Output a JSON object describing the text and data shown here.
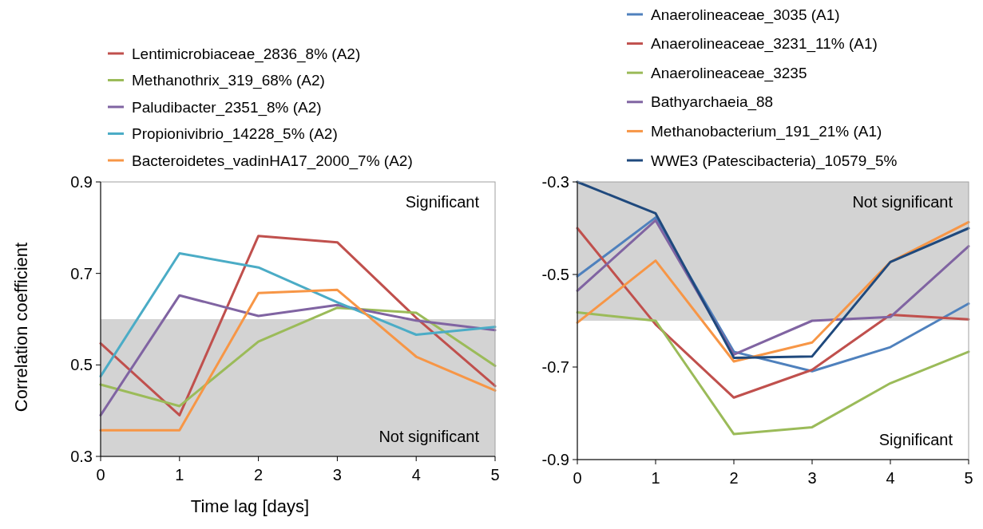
{
  "chart_data": [
    {
      "type": "line",
      "xlabel": "Time lag [days]",
      "ylabel": "Correlation coefficient",
      "x": [
        0,
        1,
        2,
        3,
        4,
        5
      ],
      "xlim": [
        0,
        5
      ],
      "xticks": [
        0,
        1,
        2,
        3,
        4,
        5
      ],
      "ylim": [
        0.3,
        0.9
      ],
      "yticks": [
        0.3,
        0.5,
        0.7,
        0.9
      ],
      "legend": "top",
      "grid": false,
      "line_style": "solid",
      "bands": [
        {
          "axis": "y",
          "from": 0.3,
          "to": 0.6,
          "label": "Not significant",
          "color": "#d3d3d3"
        }
      ],
      "annotations": [
        "Significant"
      ],
      "series": [
        {
          "name": "Lentimicrobiaceae_2836_8% (A2)",
          "color": "#c0504d",
          "values": [
            0.547,
            0.39,
            0.782,
            0.768,
            0.603,
            0.454
          ]
        },
        {
          "name": "Methanothrix_319_68% (A2)",
          "color": "#9bbb59",
          "values": [
            0.457,
            0.41,
            0.551,
            0.625,
            0.614,
            0.498
          ]
        },
        {
          "name": "Paludibacter_2351_8% (A2)",
          "color": "#8064a2",
          "values": [
            0.39,
            0.652,
            0.607,
            0.631,
            0.597,
            0.576
          ]
        },
        {
          "name": "Propionivibrio_14228_5% (A2)",
          "color": "#4bacc6",
          "values": [
            0.475,
            0.744,
            0.713,
            0.637,
            0.566,
            0.583
          ]
        },
        {
          "name": "Bacteroidetes_vadinHA17_2000_7% (A2)",
          "color": "#f79646",
          "values": [
            0.357,
            0.357,
            0.657,
            0.664,
            0.518,
            0.444
          ]
        }
      ]
    },
    {
      "type": "line",
      "x": [
        0,
        1,
        2,
        3,
        4,
        5
      ],
      "xlim": [
        0,
        5
      ],
      "xticks": [
        0,
        1,
        2,
        3,
        4,
        5
      ],
      "ylim": [
        -0.9,
        -0.3
      ],
      "yticks": [
        -0.9,
        -0.7,
        -0.5,
        -0.3
      ],
      "legend": "top",
      "grid": false,
      "line_style": "solid",
      "bands": [
        {
          "axis": "y",
          "from": -0.6,
          "to": -0.3,
          "label": "Not significant",
          "color": "#d3d3d3"
        }
      ],
      "annotations": [
        "Significant"
      ],
      "series": [
        {
          "name": "Anaerolineaceae_3035 (A1)",
          "color": "#4f81bd",
          "values": [
            -0.504,
            -0.377,
            -0.667,
            -0.709,
            -0.657,
            -0.563
          ]
        },
        {
          "name": "Anaerolineaceae_3231_11% (A1)",
          "color": "#c0504d",
          "values": [
            -0.4,
            -0.608,
            -0.766,
            -0.706,
            -0.587,
            -0.597
          ]
        },
        {
          "name": "Anaerolineaceae_3235",
          "color": "#9bbb59",
          "values": [
            -0.582,
            -0.6,
            -0.845,
            -0.83,
            -0.735,
            -0.667
          ]
        },
        {
          "name": "Bathyarchaeia_88",
          "color": "#8064a2",
          "values": [
            -0.535,
            -0.383,
            -0.673,
            -0.6,
            -0.592,
            -0.439
          ]
        },
        {
          "name": "Methanobacterium_191_21% (A1)",
          "color": "#f79646",
          "values": [
            -0.604,
            -0.47,
            -0.688,
            -0.647,
            -0.473,
            -0.387
          ]
        },
        {
          "name": "WWE3 (Patescibacteria)_10579_5%",
          "color": "#1f497d",
          "values": [
            -0.3,
            -0.368,
            -0.68,
            -0.677,
            -0.473,
            -0.4
          ]
        }
      ]
    }
  ]
}
